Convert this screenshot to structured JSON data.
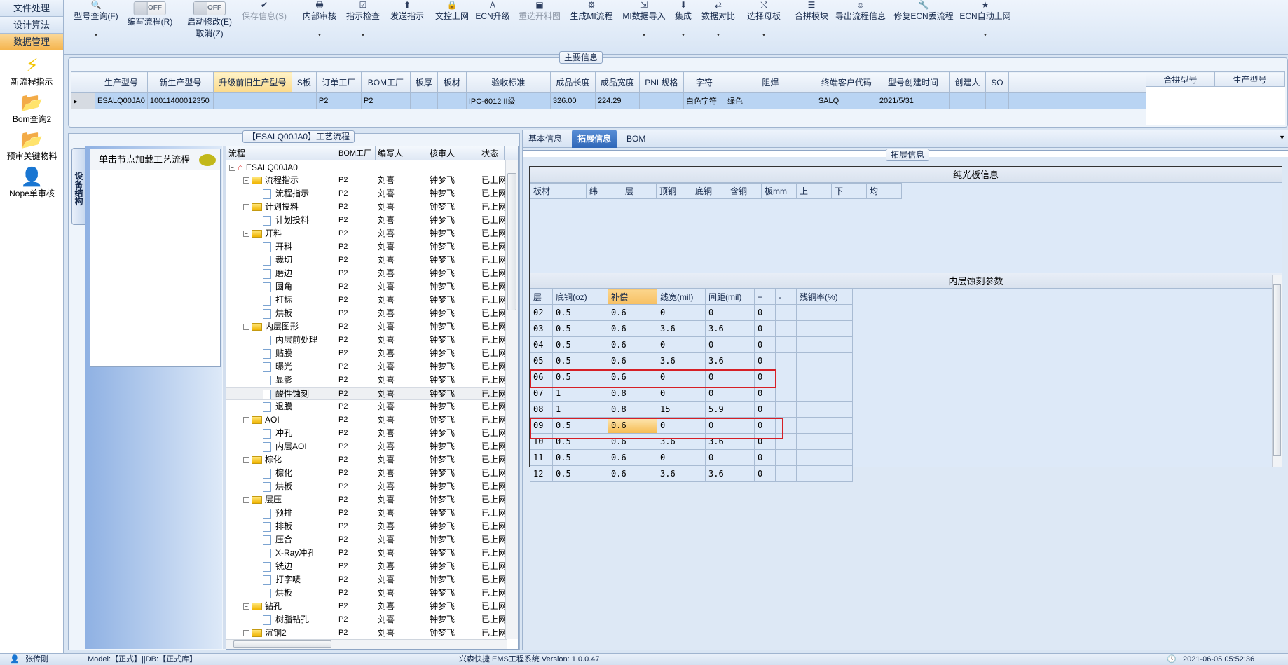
{
  "nav": {
    "tabs": [
      {
        "label": "文件处理"
      },
      {
        "label": "设计算法"
      },
      {
        "label": "数据管理",
        "active": true
      }
    ],
    "items": [
      {
        "label": "新流程指示",
        "icon": "lightning-icon"
      },
      {
        "label": "Bom查询2",
        "icon": "folder-open-icon"
      },
      {
        "label": "预审关键物料",
        "icon": "folder-open-icon"
      },
      {
        "label": "Nope单审核",
        "icon": "user-icon"
      }
    ]
  },
  "toolbar": {
    "query": {
      "label": "型号查询(F)",
      "icon": "search-icon"
    },
    "write_flow": {
      "label": "编写流程(R)",
      "toggle": "OFF"
    },
    "start_modify": {
      "label": "启动修改(E)",
      "label2": "取消(Z)",
      "toggle": "OFF"
    },
    "buttons": [
      {
        "label": "保存信息(S)",
        "icon": "check-icon",
        "disabled": true
      },
      {
        "label": "内部审核",
        "icon": "printer-icon",
        "dropdown": true
      },
      {
        "label": "指示检查",
        "icon": "checkbox-icon",
        "dropdown": true
      },
      {
        "label": "发送指示",
        "icon": "send-icon"
      },
      {
        "label": "文控上网",
        "icon": "lock-icon"
      },
      {
        "label": "ECN升级",
        "icon": "letter-a-icon"
      },
      {
        "label": "重选开料图",
        "icon": "image-icon",
        "disabled": true
      },
      {
        "label": "生成MI流程",
        "icon": "gears-icon"
      },
      {
        "label": "MI数据导入",
        "icon": "import-icon",
        "dropdown": true
      },
      {
        "label": "集成",
        "icon": "download-icon",
        "dropdown": true
      },
      {
        "label": "数据对比",
        "icon": "compare-icon",
        "dropdown": true
      },
      {
        "label": "选择母板",
        "icon": "shuffle-icon",
        "dropdown": true
      },
      {
        "label": "合拼模块",
        "icon": "list-icon"
      },
      {
        "label": "导出流程信息",
        "icon": "smiley-icon"
      },
      {
        "label": "修复ECN丢流程",
        "icon": "wrench-icon"
      },
      {
        "label": "ECN自动上网",
        "icon": "star-icon",
        "dropdown": true
      }
    ]
  },
  "main_info": {
    "title": "主要信息",
    "columns": [
      "生产型号",
      "新生产型号",
      "升级前旧生产型号",
      "S板",
      "订单工厂",
      "BOM工厂",
      "板厚",
      "板材",
      "验收标准",
      "成品长度",
      "成品宽度",
      "PNL规格",
      "字符",
      "阻焊",
      "终端客户代码",
      "型号创建时间",
      "创建人",
      "SO"
    ],
    "row": [
      "ESALQ00JA0",
      "10011400012350",
      "",
      "",
      "P2",
      "P2",
      "",
      "",
      "IPC-6012 II级",
      "326.00",
      "224.29",
      "",
      "白色字符",
      "绿色",
      "SALQ",
      "2021/5/31",
      "",
      ""
    ],
    "side_columns": [
      "合拼型号",
      "生产型号"
    ]
  },
  "process": {
    "title": "【ESALQ00JA0】工艺流程",
    "vertical_tab": "设备结构",
    "list_header": "单击节点加载工艺流程",
    "columns": [
      "流程",
      "BOM工厂",
      "编写人",
      "核审人",
      "状态"
    ],
    "rows": [
      {
        "level": 0,
        "name": "ESALQ00JA0",
        "bom": "",
        "writer": "",
        "reviewer": "",
        "status": ""
      },
      {
        "level": 1,
        "name": "流程指示",
        "bom": "P2",
        "writer": "刘喜",
        "reviewer": "钟梦飞",
        "status": "已上网"
      },
      {
        "level": 2,
        "name": "流程指示",
        "bom": "P2",
        "writer": "刘喜",
        "reviewer": "钟梦飞",
        "status": "已上网"
      },
      {
        "level": 1,
        "name": "计划投料",
        "bom": "P2",
        "writer": "刘喜",
        "reviewer": "钟梦飞",
        "status": "已上网"
      },
      {
        "level": 2,
        "name": "计划投料",
        "bom": "P2",
        "writer": "刘喜",
        "reviewer": "钟梦飞",
        "status": "已上网"
      },
      {
        "level": 1,
        "name": "开料",
        "bom": "P2",
        "writer": "刘喜",
        "reviewer": "钟梦飞",
        "status": "已上网"
      },
      {
        "level": 2,
        "name": "开料",
        "bom": "P2",
        "writer": "刘喜",
        "reviewer": "钟梦飞",
        "status": "已上网"
      },
      {
        "level": 2,
        "name": "裁切",
        "bom": "P2",
        "writer": "刘喜",
        "reviewer": "钟梦飞",
        "status": "已上网"
      },
      {
        "level": 2,
        "name": "磨边",
        "bom": "P2",
        "writer": "刘喜",
        "reviewer": "钟梦飞",
        "status": "已上网"
      },
      {
        "level": 2,
        "name": "圆角",
        "bom": "P2",
        "writer": "刘喜",
        "reviewer": "钟梦飞",
        "status": "已上网"
      },
      {
        "level": 2,
        "name": "打标",
        "bom": "P2",
        "writer": "刘喜",
        "reviewer": "钟梦飞",
        "status": "已上网"
      },
      {
        "level": 2,
        "name": "烘板",
        "bom": "P2",
        "writer": "刘喜",
        "reviewer": "钟梦飞",
        "status": "已上网"
      },
      {
        "level": 1,
        "name": "内层图形",
        "bom": "P2",
        "writer": "刘喜",
        "reviewer": "钟梦飞",
        "status": "已上网"
      },
      {
        "level": 2,
        "name": "内层前处理",
        "bom": "P2",
        "writer": "刘喜",
        "reviewer": "钟梦飞",
        "status": "已上网"
      },
      {
        "level": 2,
        "name": "贴膜",
        "bom": "P2",
        "writer": "刘喜",
        "reviewer": "钟梦飞",
        "status": "已上网"
      },
      {
        "level": 2,
        "name": "曝光",
        "bom": "P2",
        "writer": "刘喜",
        "reviewer": "钟梦飞",
        "status": "已上网"
      },
      {
        "level": 2,
        "name": "显影",
        "bom": "P2",
        "writer": "刘喜",
        "reviewer": "钟梦飞",
        "status": "已上网"
      },
      {
        "level": 2,
        "name": "酸性蚀刻",
        "bom": "P2",
        "writer": "刘喜",
        "reviewer": "钟梦飞",
        "status": "已上网",
        "selected": true
      },
      {
        "level": 2,
        "name": "退膜",
        "bom": "P2",
        "writer": "刘喜",
        "reviewer": "钟梦飞",
        "status": "已上网"
      },
      {
        "level": 1,
        "name": "AOI",
        "bom": "P2",
        "writer": "刘喜",
        "reviewer": "钟梦飞",
        "status": "已上网"
      },
      {
        "level": 2,
        "name": "冲孔",
        "bom": "P2",
        "writer": "刘喜",
        "reviewer": "钟梦飞",
        "status": "已上网"
      },
      {
        "level": 2,
        "name": "内层AOI",
        "bom": "P2",
        "writer": "刘喜",
        "reviewer": "钟梦飞",
        "status": "已上网"
      },
      {
        "level": 1,
        "name": "棕化",
        "bom": "P2",
        "writer": "刘喜",
        "reviewer": "钟梦飞",
        "status": "已上网"
      },
      {
        "level": 2,
        "name": "棕化",
        "bom": "P2",
        "writer": "刘喜",
        "reviewer": "钟梦飞",
        "status": "已上网"
      },
      {
        "level": 2,
        "name": "烘板",
        "bom": "P2",
        "writer": "刘喜",
        "reviewer": "钟梦飞",
        "status": "已上网"
      },
      {
        "level": 1,
        "name": "层压",
        "bom": "P2",
        "writer": "刘喜",
        "reviewer": "钟梦飞",
        "status": "已上网"
      },
      {
        "level": 2,
        "name": "预排",
        "bom": "P2",
        "writer": "刘喜",
        "reviewer": "钟梦飞",
        "status": "已上网"
      },
      {
        "level": 2,
        "name": "排板",
        "bom": "P2",
        "writer": "刘喜",
        "reviewer": "钟梦飞",
        "status": "已上网"
      },
      {
        "level": 2,
        "name": "压合",
        "bom": "P2",
        "writer": "刘喜",
        "reviewer": "钟梦飞",
        "status": "已上网"
      },
      {
        "level": 2,
        "name": "X-Ray冲孔",
        "bom": "P2",
        "writer": "刘喜",
        "reviewer": "钟梦飞",
        "status": "已上网"
      },
      {
        "level": 2,
        "name": "铣边",
        "bom": "P2",
        "writer": "刘喜",
        "reviewer": "钟梦飞",
        "status": "已上网"
      },
      {
        "level": 2,
        "name": "打字唛",
        "bom": "P2",
        "writer": "刘喜",
        "reviewer": "钟梦飞",
        "status": "已上网"
      },
      {
        "level": 2,
        "name": "烘板",
        "bom": "P2",
        "writer": "刘喜",
        "reviewer": "钟梦飞",
        "status": "已上网"
      },
      {
        "level": 1,
        "name": "钻孔",
        "bom": "P2",
        "writer": "刘喜",
        "reviewer": "钟梦飞",
        "status": "已上网"
      },
      {
        "level": 2,
        "name": "树脂钻孔",
        "bom": "P2",
        "writer": "刘喜",
        "reviewer": "钟梦飞",
        "status": "已上网"
      },
      {
        "level": 1,
        "name": "沉铜2",
        "bom": "P2",
        "writer": "刘喜",
        "reviewer": "钟梦飞",
        "status": "已上网"
      }
    ]
  },
  "right": {
    "tabs": [
      {
        "label": "基本信息"
      },
      {
        "label": "拓展信息",
        "active": true
      },
      {
        "label": "BOM"
      }
    ],
    "group_title": "拓展信息",
    "bare_board": {
      "title": "纯光板信息",
      "columns": [
        "板材",
        "纬",
        "层",
        "顶铜",
        "底铜",
        "含铜",
        "板mm",
        "上",
        "下",
        "均"
      ]
    },
    "inner_etch": {
      "title": "内层蚀刻参数",
      "columns": [
        "层",
        "底铜(oz)",
        "补偿",
        "线宽(mil)",
        "间距(mil)",
        "+",
        "-",
        "残铜率(%)"
      ],
      "rows": [
        [
          "02",
          "0.5",
          "0.6",
          "0",
          "0",
          "0",
          "",
          ""
        ],
        [
          "03",
          "0.5",
          "0.6",
          "3.6",
          "3.6",
          "0",
          "",
          ""
        ],
        [
          "04",
          "0.5",
          "0.6",
          "0",
          "0",
          "0",
          "",
          ""
        ],
        [
          "05",
          "0.5",
          "0.6",
          "3.6",
          "3.6",
          "0",
          "",
          ""
        ],
        [
          "06",
          "0.5",
          "0.6",
          "0",
          "0",
          "0",
          "",
          ""
        ],
        [
          "07",
          "1",
          "0.8",
          "0",
          "0",
          "0",
          "",
          ""
        ],
        [
          "08",
          "1",
          "0.8",
          "15",
          "5.9",
          "0",
          "",
          ""
        ],
        [
          "09",
          "0.5",
          "0.6",
          "0",
          "0",
          "0",
          "",
          ""
        ],
        [
          "10",
          "0.5",
          "0.6",
          "3.6",
          "3.6",
          "0",
          "",
          ""
        ],
        [
          "11",
          "0.5",
          "0.6",
          "0",
          "0",
          "0",
          "",
          ""
        ],
        [
          "12",
          "0.5",
          "0.6",
          "3.6",
          "3.6",
          "0",
          "",
          ""
        ]
      ],
      "highlighted_rows": [
        "06",
        "09"
      ],
      "highlight_color": "#d61f26"
    }
  },
  "status": {
    "user": "张传刚",
    "model": "Model:【正式】||DB:【正式库】",
    "app": "兴森快捷 EMS工程系统 Version: 1.0.0.47",
    "datetime": "2021-06-05 05:52:36"
  }
}
